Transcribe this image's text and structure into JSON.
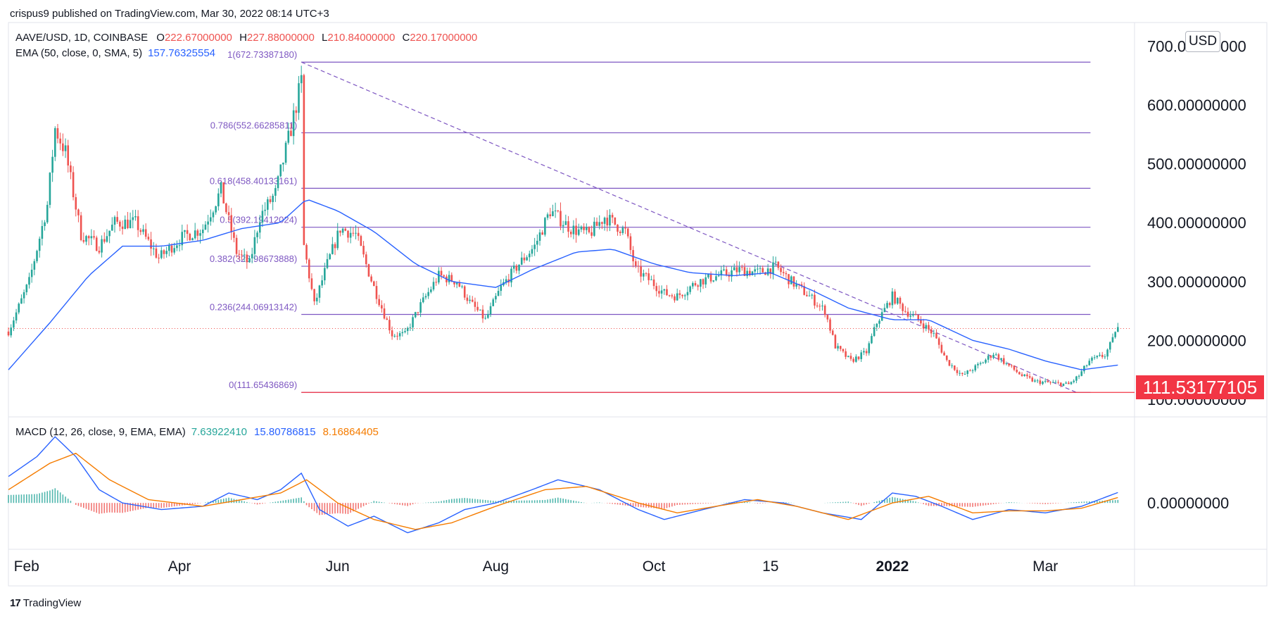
{
  "meta": {
    "published": "crispus9 published on TradingView.com, Mar 30, 2022 08:14 UTC+3"
  },
  "symbol": "AAVE/USD, 1D, COINBASE",
  "ohlc": {
    "o_label": "O",
    "o": "222.67000000",
    "h_label": "H",
    "h": "227.88000000",
    "l_label": "L",
    "l": "210.84000000",
    "c_label": "C",
    "c": "220.17000000"
  },
  "ema": {
    "label": "EMA (50, close, 0, SMA, 5)",
    "value": "157.76325554"
  },
  "macd": {
    "label": "MACD (12, 26, close, 9, EMA, EMA)",
    "hist": "7.63922410",
    "macd": "15.80786815",
    "signal": "8.16864405"
  },
  "currency_badge": "USD",
  "last_price_tag": "111.53177105",
  "footer_brand": "TradingView",
  "colors": {
    "up": "#26a69a",
    "down": "#ef5350",
    "ema": "#2962ff",
    "fib": "#7e57c2",
    "signal": "#f57c00",
    "tag": "#f23645"
  },
  "chart_data": [
    {
      "type": "candlestick",
      "title": "AAVE/USD, 1D, COINBASE",
      "x_range": [
        "2021-01-25",
        "2022-03-30"
      ],
      "ylim": [
        70,
        740
      ],
      "y_ticks": [
        "700.00000000",
        "600.00000000",
        "500.00000000",
        "400.00000000",
        "300.00000000",
        "200.00000000",
        "100.00000000"
      ],
      "y_tick_values": [
        700,
        600,
        500,
        400,
        300,
        200,
        100
      ],
      "x_ticks": [
        {
          "label": "Feb",
          "date": "2021-02-01"
        },
        {
          "label": "Apr",
          "date": "2021-04-01"
        },
        {
          "label": "Jun",
          "date": "2021-06-01"
        },
        {
          "label": "Aug",
          "date": "2021-08-01"
        },
        {
          "label": "Oct",
          "date": "2021-10-01"
        },
        {
          "label": "15",
          "date": "2021-11-15"
        },
        {
          "label": "2022",
          "date": "2022-01-01"
        },
        {
          "label": "Mar",
          "date": "2022-03-01"
        }
      ],
      "price_path": [
        [
          "2021-01-25",
          215
        ],
        [
          "2021-02-02",
          300
        ],
        [
          "2021-02-09",
          430
        ],
        [
          "2021-02-12",
          560
        ],
        [
          "2021-02-16",
          520
        ],
        [
          "2021-02-22",
          380
        ],
        [
          "2021-03-01",
          360
        ],
        [
          "2021-03-07",
          400
        ],
        [
          "2021-03-15",
          400
        ],
        [
          "2021-03-24",
          340
        ],
        [
          "2021-04-02",
          375
        ],
        [
          "2021-04-10",
          390
        ],
        [
          "2021-04-17",
          455
        ],
        [
          "2021-04-23",
          350
        ],
        [
          "2021-04-28",
          330
        ],
        [
          "2021-05-02",
          410
        ],
        [
          "2021-05-08",
          450
        ],
        [
          "2021-05-14",
          560
        ],
        [
          "2021-05-18",
          640
        ],
        [
          "2021-05-19",
          360
        ],
        [
          "2021-05-23",
          260
        ],
        [
          "2021-05-28",
          330
        ],
        [
          "2021-06-02",
          390
        ],
        [
          "2021-06-08",
          380
        ],
        [
          "2021-06-15",
          290
        ],
        [
          "2021-06-22",
          210
        ],
        [
          "2021-06-27",
          210
        ],
        [
          "2021-07-03",
          260
        ],
        [
          "2021-07-10",
          310
        ],
        [
          "2021-07-17",
          300
        ],
        [
          "2021-07-22",
          265
        ],
        [
          "2021-07-28",
          235
        ],
        [
          "2021-08-03",
          290
        ],
        [
          "2021-08-10",
          330
        ],
        [
          "2021-08-16",
          360
        ],
        [
          "2021-08-22",
          420
        ],
        [
          "2021-08-30",
          390
        ],
        [
          "2021-09-06",
          380
        ],
        [
          "2021-09-12",
          410
        ],
        [
          "2021-09-20",
          385
        ],
        [
          "2021-09-24",
          320
        ],
        [
          "2021-09-30",
          300
        ],
        [
          "2021-10-05",
          280
        ],
        [
          "2021-10-10",
          275
        ],
        [
          "2021-10-18",
          300
        ],
        [
          "2021-10-26",
          310
        ],
        [
          "2021-11-03",
          320
        ],
        [
          "2021-11-10",
          315
        ],
        [
          "2021-11-17",
          325
        ],
        [
          "2021-11-23",
          300
        ],
        [
          "2021-11-30",
          275
        ],
        [
          "2021-12-06",
          250
        ],
        [
          "2021-12-10",
          190
        ],
        [
          "2021-12-16",
          165
        ],
        [
          "2021-12-22",
          180
        ],
        [
          "2021-12-26",
          230
        ],
        [
          "2022-01-01",
          275
        ],
        [
          "2022-01-06",
          250
        ],
        [
          "2022-01-11",
          235
        ],
        [
          "2022-01-17",
          210
        ],
        [
          "2022-01-22",
          165
        ],
        [
          "2022-01-28",
          140
        ],
        [
          "2022-02-04",
          160
        ],
        [
          "2022-02-09",
          178
        ],
        [
          "2022-02-14",
          160
        ],
        [
          "2022-02-20",
          140
        ],
        [
          "2022-02-25",
          130
        ],
        [
          "2022-03-03",
          128
        ],
        [
          "2022-03-10",
          125
        ],
        [
          "2022-03-14",
          140
        ],
        [
          "2022-03-18",
          165
        ],
        [
          "2022-03-24",
          175
        ],
        [
          "2022-03-27",
          200
        ],
        [
          "2022-03-28",
          218
        ],
        [
          "2022-03-29",
          220
        ]
      ],
      "ema_path": [
        [
          "2021-01-25",
          150
        ],
        [
          "2021-02-10",
          230
        ],
        [
          "2021-02-25",
          310
        ],
        [
          "2021-03-10",
          360
        ],
        [
          "2021-03-25",
          360
        ],
        [
          "2021-04-10",
          370
        ],
        [
          "2021-04-25",
          390
        ],
        [
          "2021-05-10",
          400
        ],
        [
          "2021-05-20",
          440
        ],
        [
          "2021-06-01",
          420
        ],
        [
          "2021-06-15",
          385
        ],
        [
          "2021-07-01",
          330
        ],
        [
          "2021-07-15",
          300
        ],
        [
          "2021-08-01",
          290
        ],
        [
          "2021-08-15",
          320
        ],
        [
          "2021-09-01",
          350
        ],
        [
          "2021-09-15",
          355
        ],
        [
          "2021-10-01",
          330
        ],
        [
          "2021-10-15",
          315
        ],
        [
          "2021-11-01",
          310
        ],
        [
          "2021-11-15",
          315
        ],
        [
          "2021-12-01",
          285
        ],
        [
          "2021-12-15",
          255
        ],
        [
          "2022-01-01",
          235
        ],
        [
          "2022-01-15",
          235
        ],
        [
          "2022-02-01",
          200
        ],
        [
          "2022-02-15",
          185
        ],
        [
          "2022-03-01",
          165
        ],
        [
          "2022-03-15",
          150
        ],
        [
          "2022-03-29",
          158
        ]
      ],
      "fib_levels": [
        {
          "ratio": "1",
          "label": "1(672.73387180)",
          "value": 672.7339
        },
        {
          "ratio": "0.786",
          "label": "0.786(552.66285811)",
          "value": 552.6629
        },
        {
          "ratio": "0.618",
          "label": "0.618(458.40133161)",
          "value": 458.4013
        },
        {
          "ratio": "0.5",
          "label": "0.5(392.19412024)",
          "value": 392.1941
        },
        {
          "ratio": "0.382",
          "label": "0.382(325.98673888)",
          "value": 325.9867
        },
        {
          "ratio": "0.236",
          "label": "0.236(244.06913142)",
          "value": 244.0691
        },
        {
          "ratio": "0",
          "label": "0(111.65436869)",
          "value": 111.6544
        }
      ],
      "fib_range": [
        "2021-05-18",
        "2022-03-13"
      ],
      "fib_trend": [
        [
          "2021-05-18",
          672.7339
        ],
        [
          "2022-03-13",
          111.6544
        ]
      ],
      "last_close": 220.17,
      "support_level": 111.53177105
    },
    {
      "type": "macd",
      "title": "MACD (12, 26, close, 9, EMA, EMA)",
      "ylim": [
        -70,
        130
      ],
      "y_ticks": [
        "0.00000000"
      ],
      "y_tick_values": [
        0
      ],
      "macd_path": [
        [
          "2021-01-25",
          40
        ],
        [
          "2021-02-05",
          70
        ],
        [
          "2021-02-12",
          100
        ],
        [
          "2021-02-20",
          70
        ],
        [
          "2021-03-01",
          20
        ],
        [
          "2021-03-10",
          0
        ],
        [
          "2021-03-25",
          -10
        ],
        [
          "2021-04-10",
          -5
        ],
        [
          "2021-04-20",
          15
        ],
        [
          "2021-05-01",
          5
        ],
        [
          "2021-05-10",
          20
        ],
        [
          "2021-05-18",
          45
        ],
        [
          "2021-05-25",
          -10
        ],
        [
          "2021-06-05",
          -35
        ],
        [
          "2021-06-15",
          -20
        ],
        [
          "2021-06-28",
          -45
        ],
        [
          "2021-07-10",
          -30
        ],
        [
          "2021-07-20",
          -10
        ],
        [
          "2021-08-01",
          0
        ],
        [
          "2021-08-15",
          20
        ],
        [
          "2021-08-25",
          35
        ],
        [
          "2021-09-10",
          20
        ],
        [
          "2021-09-25",
          -10
        ],
        [
          "2021-10-05",
          -25
        ],
        [
          "2021-10-20",
          -10
        ],
        [
          "2021-11-05",
          5
        ],
        [
          "2021-11-20",
          0
        ],
        [
          "2021-12-05",
          -15
        ],
        [
          "2021-12-20",
          -25
        ],
        [
          "2022-01-01",
          15
        ],
        [
          "2022-01-10",
          10
        ],
        [
          "2022-01-20",
          -5
        ],
        [
          "2022-02-01",
          -25
        ],
        [
          "2022-02-15",
          -10
        ],
        [
          "2022-03-01",
          -15
        ],
        [
          "2022-03-15",
          -5
        ],
        [
          "2022-03-29",
          15.8
        ]
      ],
      "signal_path": [
        [
          "2021-01-25",
          20
        ],
        [
          "2021-02-10",
          60
        ],
        [
          "2021-02-20",
          75
        ],
        [
          "2021-03-05",
          35
        ],
        [
          "2021-03-20",
          5
        ],
        [
          "2021-04-10",
          -5
        ],
        [
          "2021-04-25",
          5
        ],
        [
          "2021-05-10",
          15
        ],
        [
          "2021-05-20",
          35
        ],
        [
          "2021-06-01",
          0
        ],
        [
          "2021-06-15",
          -25
        ],
        [
          "2021-07-01",
          -40
        ],
        [
          "2021-07-15",
          -30
        ],
        [
          "2021-08-01",
          -5
        ],
        [
          "2021-08-20",
          20
        ],
        [
          "2021-09-05",
          25
        ],
        [
          "2021-09-25",
          0
        ],
        [
          "2021-10-10",
          -15
        ],
        [
          "2021-10-25",
          -5
        ],
        [
          "2021-11-10",
          5
        ],
        [
          "2021-11-25",
          -5
        ],
        [
          "2021-12-15",
          -25
        ],
        [
          "2022-01-01",
          0
        ],
        [
          "2022-01-15",
          10
        ],
        [
          "2022-02-01",
          -15
        ],
        [
          "2022-02-15",
          -12
        ],
        [
          "2022-03-01",
          -12
        ],
        [
          "2022-03-15",
          -8
        ],
        [
          "2022-03-29",
          8.2
        ]
      ]
    }
  ]
}
